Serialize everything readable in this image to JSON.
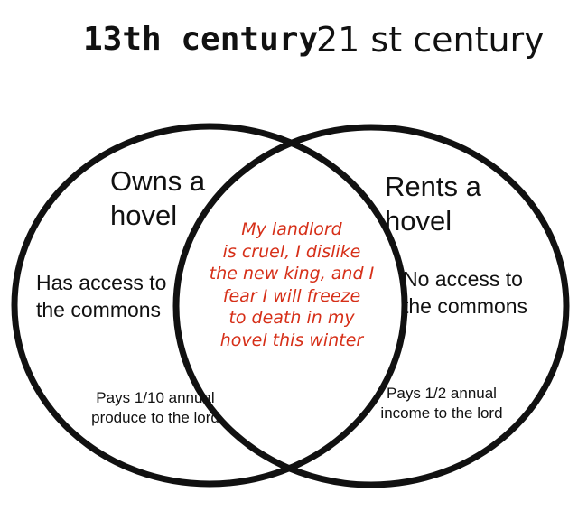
{
  "titles": {
    "left": "13th century",
    "right": "21 st century"
  },
  "left_only": {
    "housing": [
      "Owns a",
      "hovel"
    ],
    "commons": [
      "Has access to",
      "the commons"
    ],
    "payment": [
      "Pays 1/10 annual",
      "produce to the lord"
    ]
  },
  "right_only": {
    "housing": [
      "Rents a",
      "hovel"
    ],
    "commons": [
      "No access to",
      "the commons"
    ],
    "payment": [
      "Pays 1/2 annual",
      "income to the lord"
    ]
  },
  "shared": {
    "lines": [
      "My landlord",
      "is cruel, I dislike",
      "the new king, and I",
      "fear I will freeze",
      "to death in my",
      "hovel this winter"
    ]
  },
  "colors": {
    "circle_stroke": "#111111",
    "shared_text": "#d62f18",
    "background": "#ffffff"
  }
}
